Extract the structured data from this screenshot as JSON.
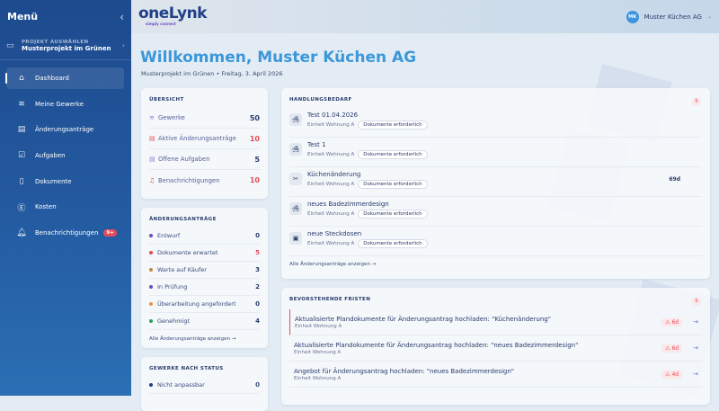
{
  "sidebar": {
    "title": "Menü",
    "project_label": "PROJEKT AUSWÄHLEN",
    "project_name": "Musterprojekt im Grünen",
    "items": [
      {
        "label": "Dashboard",
        "icon": "home-icon"
      },
      {
        "label": "Meine Gewerke",
        "icon": "layers-icon"
      },
      {
        "label": "Änderungsanträge",
        "icon": "document-icon"
      },
      {
        "label": "Aufgaben",
        "icon": "clipboard-check-icon"
      },
      {
        "label": "Dokumente",
        "icon": "file-icon"
      },
      {
        "label": "Kosten",
        "icon": "currency-icon"
      },
      {
        "label": "Benachrichtigungen",
        "icon": "bell-icon",
        "badge": "9+"
      }
    ]
  },
  "header": {
    "logo": "oneLynk",
    "logo_tagline": "simply connect",
    "user_initials": "MK",
    "user_name": "Muster Küchen AG"
  },
  "page": {
    "title": "Willkommen, Muster Küchen AG",
    "project": "Musterprojekt im Grünen",
    "separator": "•",
    "date": "Freitag, 3. April 2026"
  },
  "overview": {
    "title": "ÜBERSICHT",
    "rows": [
      {
        "label": "Gewerke",
        "value": "50",
        "color": "#2a3a6a"
      },
      {
        "label": "Aktive Änderungsanträge",
        "value": "10",
        "color": "#e54b5a"
      },
      {
        "label": "Offene Aufgaben",
        "value": "5",
        "color": "#2a3a6a"
      },
      {
        "label": "Benachrichtigungen",
        "value": "10",
        "color": "#e54b5a"
      }
    ]
  },
  "change_requests": {
    "title": "ÄNDERUNGSANTRÄGE",
    "rows": [
      {
        "label": "Entwurf",
        "value": "0",
        "dot": "#6a4cc9"
      },
      {
        "label": "Dokumente erwartet",
        "value": "5",
        "dot": "#e54b5a",
        "value_color": "#e54b5a"
      },
      {
        "label": "Warte auf Käufer",
        "value": "3",
        "dot": "#c9843a"
      },
      {
        "label": "In Prüfung",
        "value": "2",
        "dot": "#6a4cc9"
      },
      {
        "label": "Überarbeitung angefordert",
        "value": "0",
        "dot": "#f0943a"
      },
      {
        "label": "Genehmigt",
        "value": "4",
        "dot": "#2ea05a"
      }
    ],
    "link": "Alle Änderungsanträge anzeigen →"
  },
  "trades_status": {
    "title": "GEWERKE NACH STATUS",
    "rows": [
      {
        "label": "Nicht anpassbar",
        "value": "0",
        "dot": "#1f3f86"
      }
    ]
  },
  "action_needed": {
    "title": "HANDLUNGSBEDARF",
    "count": "5",
    "items": [
      {
        "title": "Test 01.04.2026",
        "unit": "Einheit Wohnung A",
        "tag": "Dokumente erforderlich",
        "icon": "bathtub-icon",
        "days": ""
      },
      {
        "title": "Test 1",
        "unit": "Einheit Wohnung A",
        "tag": "Dokumente erforderlich",
        "icon": "bathtub-icon",
        "days": ""
      },
      {
        "title": "Küchenänderung",
        "unit": "Einheit Wohnung A",
        "tag": "Dokumente erforderlich",
        "icon": "utensils-icon",
        "days": "69d"
      },
      {
        "title": "neues Badezimmerdesign",
        "unit": "Einheit Wohnung A",
        "tag": "Dokumente erforderlich",
        "icon": "bathtub-icon",
        "days": ""
      },
      {
        "title": "neue Steckdosen",
        "unit": "Einheit Wohnung A",
        "tag": "Dokumente erforderlich",
        "icon": "socket-icon",
        "days": ""
      }
    ],
    "link": "Alle Änderungsanträge anzeigen →"
  },
  "deadlines": {
    "title": "BEVORSTEHENDE FRISTEN",
    "count": "5",
    "items": [
      {
        "title": "Aktualisierte Plandokumente für Änderungsantrag hochladen: \"Küchenänderung\"",
        "unit": "Einheit Wohnung A",
        "due": "⚠ 6d"
      },
      {
        "title": "Aktualisierte Plandokumente für Änderungsantrag hochladen: \"neues Badezimmerdesign\"",
        "unit": "Einheit Wohnung A",
        "due": "⚠ 6d"
      },
      {
        "title": "Angebot für Änderungsantrag hochladen: \"neues Badezimmerdesign\"",
        "unit": "Einheit Wohnung A",
        "due": "⚠ 4d"
      }
    ]
  }
}
